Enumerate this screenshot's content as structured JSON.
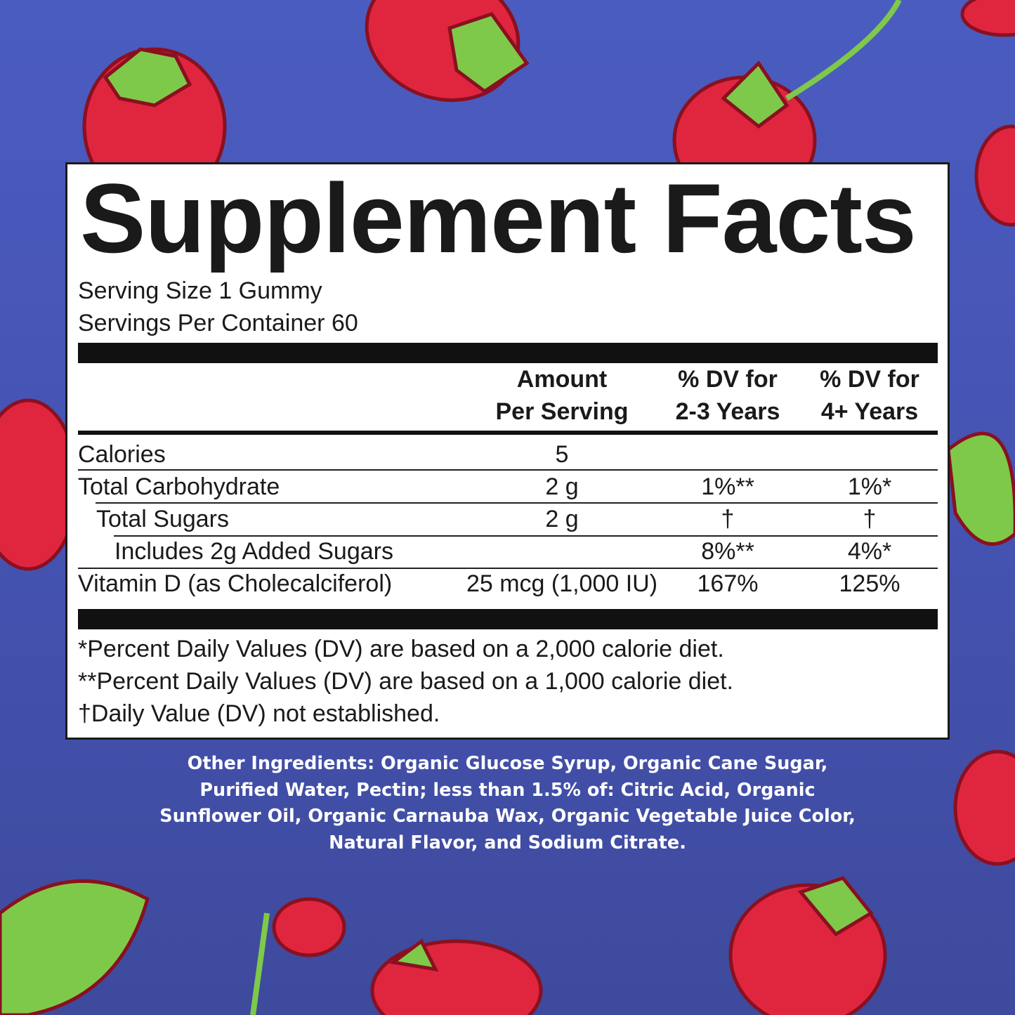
{
  "colors": {
    "background_top": "#4b5cc0",
    "background_bottom": "#3e4a9c",
    "strawberry": "#e0263f",
    "strawberry_outline": "#8a1020",
    "leaf": "#7ec94a"
  },
  "label": {
    "title": "Supplement Facts",
    "serving_size": "Serving Size 1 Gummy",
    "servings_per_container": "Servings Per Container 60",
    "headers": {
      "amount": [
        "Amount",
        "Per Serving"
      ],
      "dv_2_3": [
        "% DV for",
        "2-3 Years"
      ],
      "dv_4": [
        "% DV for",
        "4+ Years"
      ]
    },
    "rows": [
      {
        "name": "Calories",
        "amount": "5",
        "dv_2_3": "",
        "dv_4": ""
      },
      {
        "name": "Total Carbohydrate",
        "amount": "2 g",
        "dv_2_3": "1%**",
        "dv_4": "1%*"
      },
      {
        "name": "Total Sugars",
        "amount": "2 g",
        "dv_2_3": "†",
        "dv_4": "†"
      },
      {
        "name": "Includes 2g Added Sugars",
        "amount": "",
        "dv_2_3": "8%**",
        "dv_4": "4%*"
      },
      {
        "name": "Vitamin D (as Cholecalciferol)",
        "amount": "25 mcg (1,000 IU)",
        "dv_2_3": "167%",
        "dv_4": "125%"
      }
    ],
    "footnotes": [
      "*Percent Daily Values (DV) are based on a 2,000 calorie diet.",
      "**Percent Daily Values (DV) are based on a 1,000 calorie diet.",
      "†Daily Value (DV) not established."
    ]
  },
  "other_ingredients": [
    "Other Ingredients: Organic Glucose Syrup, Organic Cane Sugar,",
    "Purified Water, Pectin; less than 1.5% of: Citric Acid, Organic",
    "Sunflower Oil, Organic Carnauba Wax, Organic Vegetable Juice Color,",
    "Natural Flavor, and Sodium Citrate."
  ]
}
